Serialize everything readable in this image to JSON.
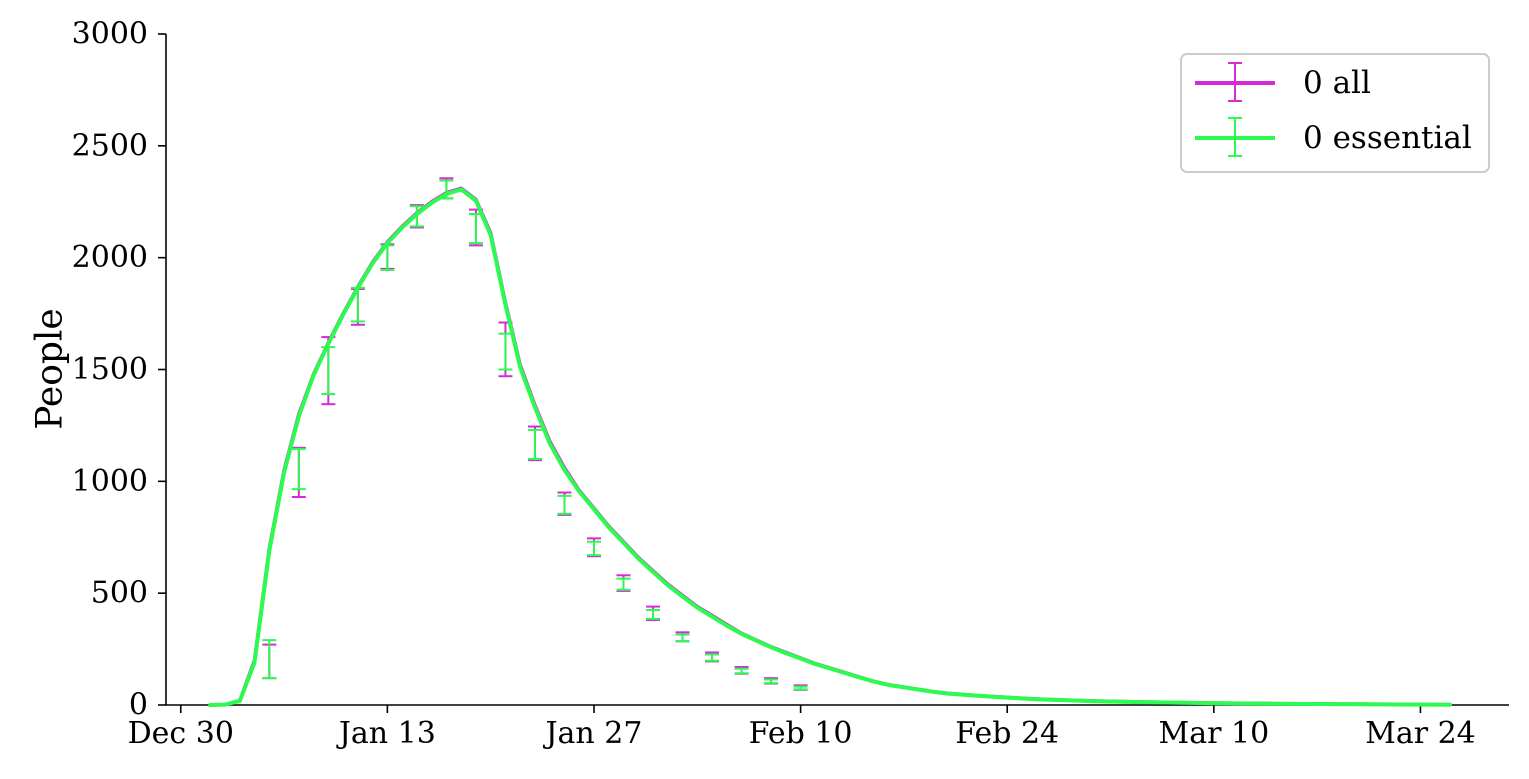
{
  "chart_data": {
    "type": "line",
    "title": "",
    "xlabel": "",
    "ylabel": "People",
    "ylim": [
      0,
      3000
    ],
    "xlim": [
      "2020-12-29",
      "2021-03-30"
    ],
    "y_ticks": [
      0,
      500,
      1000,
      1500,
      2000,
      2500,
      3000
    ],
    "y_tick_labels": [
      "0",
      "500",
      "1000",
      "1500",
      "2000",
      "2500",
      "3000"
    ],
    "x_ticks": [
      "2020-12-30",
      "2021-01-13",
      "2021-01-27",
      "2021-02-10",
      "2021-02-24",
      "2021-03-10",
      "2021-03-24"
    ],
    "x_tick_labels": [
      "Dec 30",
      "Jan 13",
      "Jan 27",
      "Feb 10",
      "Feb 24",
      "Mar 10",
      "Mar 24"
    ],
    "grid": false,
    "legend_position": "top-right",
    "legend": [
      "0 all",
      "0 essential"
    ],
    "series": [
      {
        "name": "0 all",
        "color": "#d62bd9",
        "x": [
          "2021-01-01",
          "2021-01-02",
          "2021-01-03",
          "2021-01-04",
          "2021-01-05",
          "2021-01-06",
          "2021-01-07",
          "2021-01-08",
          "2021-01-09",
          "2021-01-10",
          "2021-01-11",
          "2021-01-12",
          "2021-01-13",
          "2021-01-14",
          "2021-01-15",
          "2021-01-16",
          "2021-01-17",
          "2021-01-18",
          "2021-01-19",
          "2021-01-20",
          "2021-01-21",
          "2021-01-22",
          "2021-01-23",
          "2021-01-24",
          "2021-01-25",
          "2021-01-26",
          "2021-01-27",
          "2021-01-28",
          "2021-01-29",
          "2021-01-30",
          "2021-01-31",
          "2021-02-01",
          "2021-02-02",
          "2021-02-03",
          "2021-02-04",
          "2021-02-05",
          "2021-02-06",
          "2021-02-07",
          "2021-02-08",
          "2021-02-09",
          "2021-02-10",
          "2021-02-11",
          "2021-02-12",
          "2021-02-13",
          "2021-02-14",
          "2021-02-15",
          "2021-02-16",
          "2021-02-17",
          "2021-02-18",
          "2021-02-19",
          "2021-02-20",
          "2021-02-22",
          "2021-02-24",
          "2021-02-26",
          "2021-02-28",
          "2021-03-02",
          "2021-03-05",
          "2021-03-10",
          "2021-03-15",
          "2021-03-20",
          "2021-03-26"
        ],
        "values": [
          0,
          2,
          20,
          200,
          700,
          1050,
          1300,
          1480,
          1620,
          1750,
          1870,
          1980,
          2070,
          2140,
          2200,
          2250,
          2290,
          2310,
          2260,
          2110,
          1800,
          1520,
          1340,
          1180,
          1060,
          960,
          880,
          800,
          730,
          660,
          600,
          540,
          490,
          440,
          400,
          360,
          320,
          290,
          260,
          235,
          210,
          185,
          165,
          145,
          125,
          105,
          90,
          80,
          70,
          60,
          52,
          42,
          34,
          27,
          22,
          18,
          14,
          9,
          6,
          4,
          2
        ],
        "error_bars": [
          {
            "x": "2021-01-05",
            "y": 195,
            "low": 120,
            "high": 270
          },
          {
            "x": "2021-01-07",
            "y": 1040,
            "low": 930,
            "high": 1150
          },
          {
            "x": "2021-01-09",
            "y": 1495,
            "low": 1345,
            "high": 1645
          },
          {
            "x": "2021-01-11",
            "y": 1780,
            "low": 1700,
            "high": 1860
          },
          {
            "x": "2021-01-13",
            "y": 2005,
            "low": 1950,
            "high": 2060
          },
          {
            "x": "2021-01-15",
            "y": 2185,
            "low": 2135,
            "high": 2235
          },
          {
            "x": "2021-01-17",
            "y": 2310,
            "low": 2265,
            "high": 2355
          },
          {
            "x": "2021-01-19",
            "y": 2135,
            "low": 2055,
            "high": 2215
          },
          {
            "x": "2021-01-21",
            "y": 1590,
            "low": 1470,
            "high": 1710
          },
          {
            "x": "2021-01-23",
            "y": 1170,
            "low": 1095,
            "high": 1245
          },
          {
            "x": "2021-01-25",
            "y": 900,
            "low": 850,
            "high": 950
          },
          {
            "x": "2021-01-27",
            "y": 705,
            "low": 665,
            "high": 745
          },
          {
            "x": "2021-01-29",
            "y": 545,
            "low": 510,
            "high": 580
          },
          {
            "x": "2021-01-31",
            "y": 410,
            "low": 380,
            "high": 440
          },
          {
            "x": "2021-02-02",
            "y": 305,
            "low": 285,
            "high": 325
          },
          {
            "x": "2021-02-04",
            "y": 215,
            "low": 195,
            "high": 235
          },
          {
            "x": "2021-02-06",
            "y": 155,
            "low": 140,
            "high": 170
          },
          {
            "x": "2021-02-08",
            "y": 108,
            "low": 96,
            "high": 120
          },
          {
            "x": "2021-02-10",
            "y": 78,
            "low": 68,
            "high": 88
          }
        ]
      },
      {
        "name": "0 essential",
        "color": "#2bfa4f",
        "x": [
          "2021-01-01",
          "2021-01-02",
          "2021-01-03",
          "2021-01-04",
          "2021-01-05",
          "2021-01-06",
          "2021-01-07",
          "2021-01-08",
          "2021-01-09",
          "2021-01-10",
          "2021-01-11",
          "2021-01-12",
          "2021-01-13",
          "2021-01-14",
          "2021-01-15",
          "2021-01-16",
          "2021-01-17",
          "2021-01-18",
          "2021-01-19",
          "2021-01-20",
          "2021-01-21",
          "2021-01-22",
          "2021-01-23",
          "2021-01-24",
          "2021-01-25",
          "2021-01-26",
          "2021-01-27",
          "2021-01-28",
          "2021-01-29",
          "2021-01-30",
          "2021-01-31",
          "2021-02-01",
          "2021-02-02",
          "2021-02-03",
          "2021-02-04",
          "2021-02-05",
          "2021-02-06",
          "2021-02-07",
          "2021-02-08",
          "2021-02-09",
          "2021-02-10",
          "2021-02-11",
          "2021-02-12",
          "2021-02-13",
          "2021-02-14",
          "2021-02-15",
          "2021-02-16",
          "2021-02-17",
          "2021-02-18",
          "2021-02-19",
          "2021-02-20",
          "2021-02-22",
          "2021-02-24",
          "2021-02-26",
          "2021-02-28",
          "2021-03-02",
          "2021-03-05",
          "2021-03-10",
          "2021-03-15",
          "2021-03-20",
          "2021-03-26"
        ],
        "values": [
          0,
          2,
          18,
          190,
          690,
          1040,
          1290,
          1475,
          1615,
          1745,
          1865,
          1975,
          2065,
          2135,
          2195,
          2245,
          2285,
          2305,
          2255,
          2100,
          1790,
          1510,
          1330,
          1170,
          1050,
          955,
          875,
          795,
          725,
          655,
          595,
          535,
          485,
          435,
          395,
          355,
          318,
          288,
          258,
          232,
          208,
          183,
          163,
          143,
          123,
          104,
          89,
          79,
          69,
          59,
          51,
          41,
          33,
          26,
          21,
          17,
          13,
          8,
          5,
          3,
          1
        ],
        "error_bars": [
          {
            "x": "2021-01-05",
            "y": 205,
            "low": 120,
            "high": 290
          },
          {
            "x": "2021-01-07",
            "y": 1055,
            "low": 965,
            "high": 1145
          },
          {
            "x": "2021-01-09",
            "y": 1495,
            "low": 1390,
            "high": 1600
          },
          {
            "x": "2021-01-11",
            "y": 1790,
            "low": 1715,
            "high": 1865
          },
          {
            "x": "2021-01-13",
            "y": 2000,
            "low": 1945,
            "high": 2055
          },
          {
            "x": "2021-01-15",
            "y": 2185,
            "low": 2140,
            "high": 2230
          },
          {
            "x": "2021-01-17",
            "y": 2305,
            "low": 2265,
            "high": 2345
          },
          {
            "x": "2021-01-19",
            "y": 2130,
            "low": 2065,
            "high": 2195
          },
          {
            "x": "2021-01-21",
            "y": 1580,
            "low": 1500,
            "high": 1660
          },
          {
            "x": "2021-01-23",
            "y": 1165,
            "low": 1100,
            "high": 1230
          },
          {
            "x": "2021-01-25",
            "y": 895,
            "low": 855,
            "high": 935
          },
          {
            "x": "2021-01-27",
            "y": 700,
            "low": 670,
            "high": 730
          },
          {
            "x": "2021-01-29",
            "y": 540,
            "low": 515,
            "high": 565
          },
          {
            "x": "2021-01-31",
            "y": 405,
            "low": 385,
            "high": 425
          },
          {
            "x": "2021-02-02",
            "y": 300,
            "low": 285,
            "high": 315
          },
          {
            "x": "2021-02-04",
            "y": 212,
            "low": 198,
            "high": 226
          },
          {
            "x": "2021-02-06",
            "y": 152,
            "low": 142,
            "high": 162
          },
          {
            "x": "2021-02-08",
            "y": 106,
            "low": 98,
            "high": 114
          },
          {
            "x": "2021-02-10",
            "y": 76,
            "low": 70,
            "high": 82
          }
        ]
      }
    ]
  }
}
